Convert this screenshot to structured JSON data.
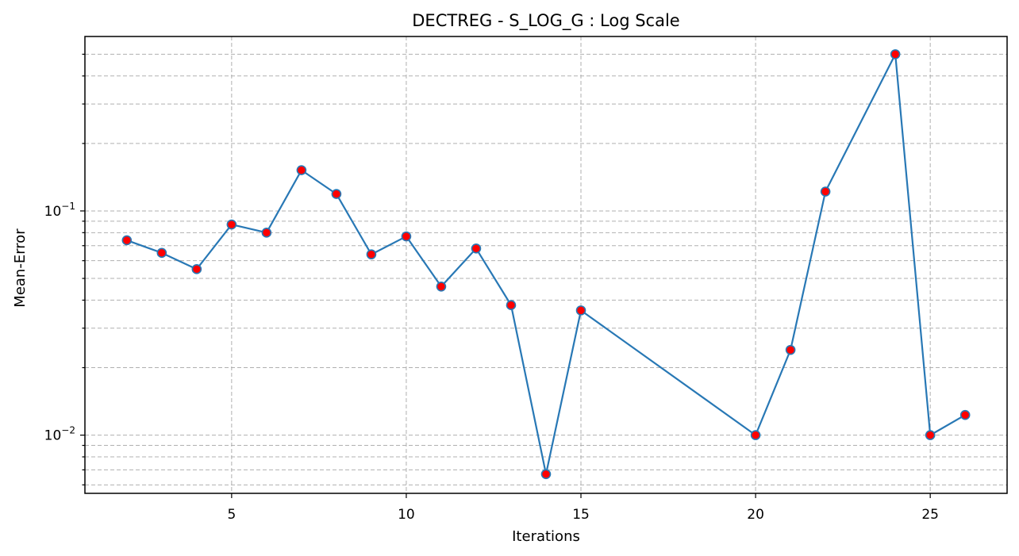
{
  "chart_data": {
    "type": "line",
    "title": "DECTREG - S_LOG_G : Log Scale",
    "xlabel": "Iterations",
    "ylabel": "Mean-Error",
    "yscale": "log",
    "xlim": [
      0.8,
      27.2
    ],
    "ylim": [
      0.0055,
      0.6
    ],
    "xticks": [
      5,
      10,
      15,
      20,
      25
    ],
    "yticks": [
      {
        "value": 0.01,
        "base": "10",
        "exp": "−2"
      },
      {
        "value": 0.1,
        "base": "10",
        "exp": "−1"
      }
    ],
    "grid": true,
    "series": [
      {
        "line_color": "#2878b5",
        "marker_color": "#ff0000",
        "x": [
          2,
          3,
          4,
          5,
          6,
          7,
          8,
          9,
          10,
          11,
          12,
          13,
          14,
          15,
          20,
          21,
          22,
          24,
          25,
          26
        ],
        "y": [
          0.074,
          0.065,
          0.055,
          0.087,
          0.08,
          0.152,
          0.119,
          0.064,
          0.077,
          0.046,
          0.068,
          0.038,
          0.0067,
          0.036,
          0.01,
          0.024,
          0.122,
          0.5,
          0.01,
          0.0123
        ]
      }
    ]
  }
}
